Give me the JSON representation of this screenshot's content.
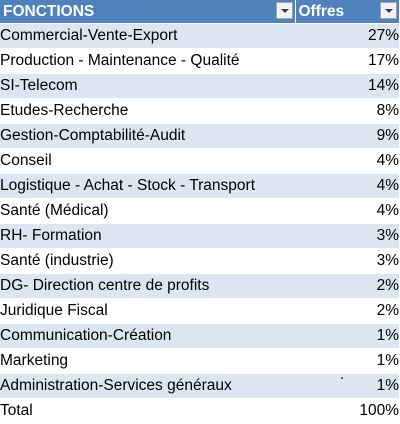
{
  "header": {
    "col_function": "FONCTIONS",
    "col_offers": "Offres"
  },
  "rows": [
    {
      "name": "Commercial-Vente-Export",
      "value": "27%"
    },
    {
      "name": "Production - Maintenance - Qualité",
      "value": "17%"
    },
    {
      "name": "SI-Telecom",
      "value": "14%"
    },
    {
      "name": "Etudes-Recherche",
      "value": "8%"
    },
    {
      "name": "Gestion-Comptabilité-Audit",
      "value": "9%"
    },
    {
      "name": "Conseil",
      "value": "4%"
    },
    {
      "name": "Logistique - Achat - Stock - Transport",
      "value": "4%"
    },
    {
      "name": "Santé (Médical)",
      "value": "4%"
    },
    {
      "name": "RH- Formation",
      "value": "3%"
    },
    {
      "name": "Santé (industrie)",
      "value": "3%"
    },
    {
      "name": "DG- Direction centre de profits",
      "value": "2%"
    },
    {
      "name": "Juridique Fiscal",
      "value": "2%"
    },
    {
      "name": "Communication-Création",
      "value": "1%"
    },
    {
      "name": "Marketing",
      "value": "1%"
    },
    {
      "name": "Administration-Services généraux",
      "value": "1%"
    }
  ],
  "total": {
    "name": "Total",
    "value": "100%"
  },
  "colors": {
    "header_bg": "#4f81bd",
    "band_bg": "#dce6f1",
    "plain_bg": "#ffffff"
  },
  "icons": {
    "filter": "dropdown-filter-icon"
  }
}
